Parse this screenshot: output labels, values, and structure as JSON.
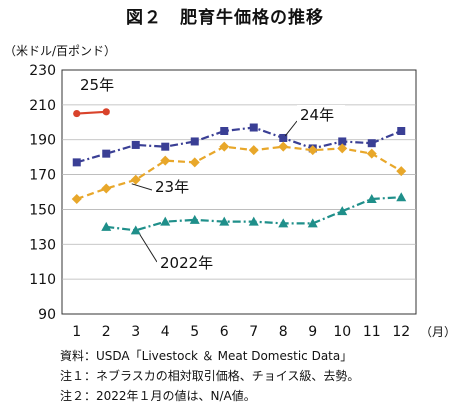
{
  "chart_data": {
    "type": "line",
    "title": "図２　肥育牛価格の推移",
    "ylabel": "（米ドル/百ポンド）",
    "xlabel": "（月）",
    "categories": [
      "1",
      "2",
      "3",
      "4",
      "5",
      "6",
      "7",
      "8",
      "9",
      "10",
      "11",
      "12"
    ],
    "ylim": [
      90,
      230
    ],
    "yticks": [
      90,
      110,
      130,
      150,
      170,
      190,
      210,
      230
    ],
    "grid": true,
    "series": [
      {
        "name": "25年",
        "color": "#d9432b",
        "style": "solid",
        "marker": "circle",
        "values": [
          205,
          206,
          null,
          null,
          null,
          null,
          null,
          null,
          null,
          null,
          null,
          null
        ]
      },
      {
        "name": "24年",
        "color": "#3a3f95",
        "style": "dashdot",
        "marker": "square",
        "values": [
          177,
          182,
          187,
          186,
          189,
          195,
          197,
          191,
          185,
          189,
          188,
          195
        ]
      },
      {
        "name": "23年",
        "color": "#e8a72a",
        "style": "dashed",
        "marker": "diamond",
        "values": [
          156,
          162,
          167,
          178,
          177,
          186,
          184,
          186,
          184,
          185,
          182,
          172
        ]
      },
      {
        "name": "2022年",
        "color": "#1f8f8a",
        "style": "dashdot",
        "marker": "triangle",
        "values": [
          null,
          140,
          138,
          143,
          144,
          143,
          143,
          142,
          142,
          149,
          156,
          157
        ]
      }
    ]
  },
  "notes": [
    "資料：USDA「Livestock ＆ Meat Domestic Data」",
    "注１：ネブラスカの相対取引価格、チョイス級、去勢。",
    "注２：2022年１月の値は、N/A値。"
  ]
}
